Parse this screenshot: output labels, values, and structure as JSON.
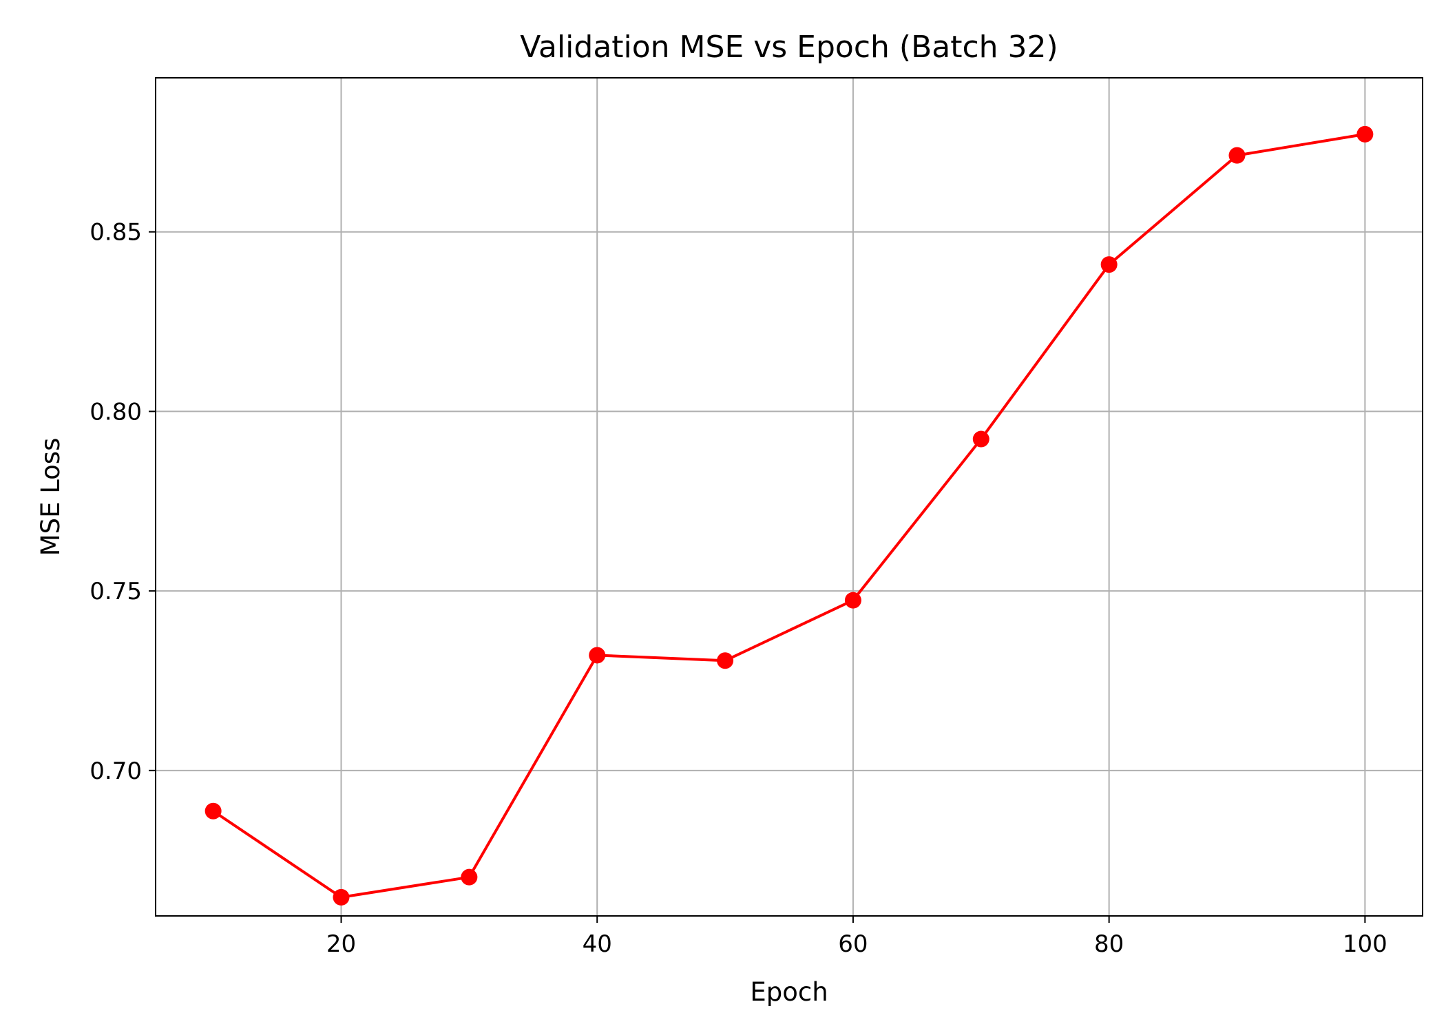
{
  "chart_data": {
    "type": "line",
    "title": "Validation MSE vs Epoch (Batch 32)",
    "xlabel": "Epoch",
    "ylabel": "MSE Loss",
    "xlim": [
      5.5,
      104.5
    ],
    "ylim": [
      0.6595,
      0.8929
    ],
    "xticks": [
      20,
      40,
      60,
      80,
      100
    ],
    "xtick_labels": [
      "20",
      "40",
      "60",
      "80",
      "100"
    ],
    "yticks": [
      0.7,
      0.75,
      0.8,
      0.85
    ],
    "ytick_labels": [
      "0.70",
      "0.75",
      "0.80",
      "0.85"
    ],
    "grid": true,
    "series": [
      {
        "color": "#ff0000",
        "marker": "circle",
        "x": [
          10,
          20,
          30,
          40,
          50,
          60,
          70,
          80,
          90,
          100
        ],
        "y": [
          0.6887,
          0.6647,
          0.6703,
          0.7321,
          0.7306,
          0.7474,
          0.7923,
          0.8409,
          0.8713,
          0.8772
        ]
      }
    ],
    "colors": {
      "line": "#ff0000",
      "grid": "#b0b0b0",
      "axes": "#000000",
      "background": "#ffffff"
    }
  }
}
